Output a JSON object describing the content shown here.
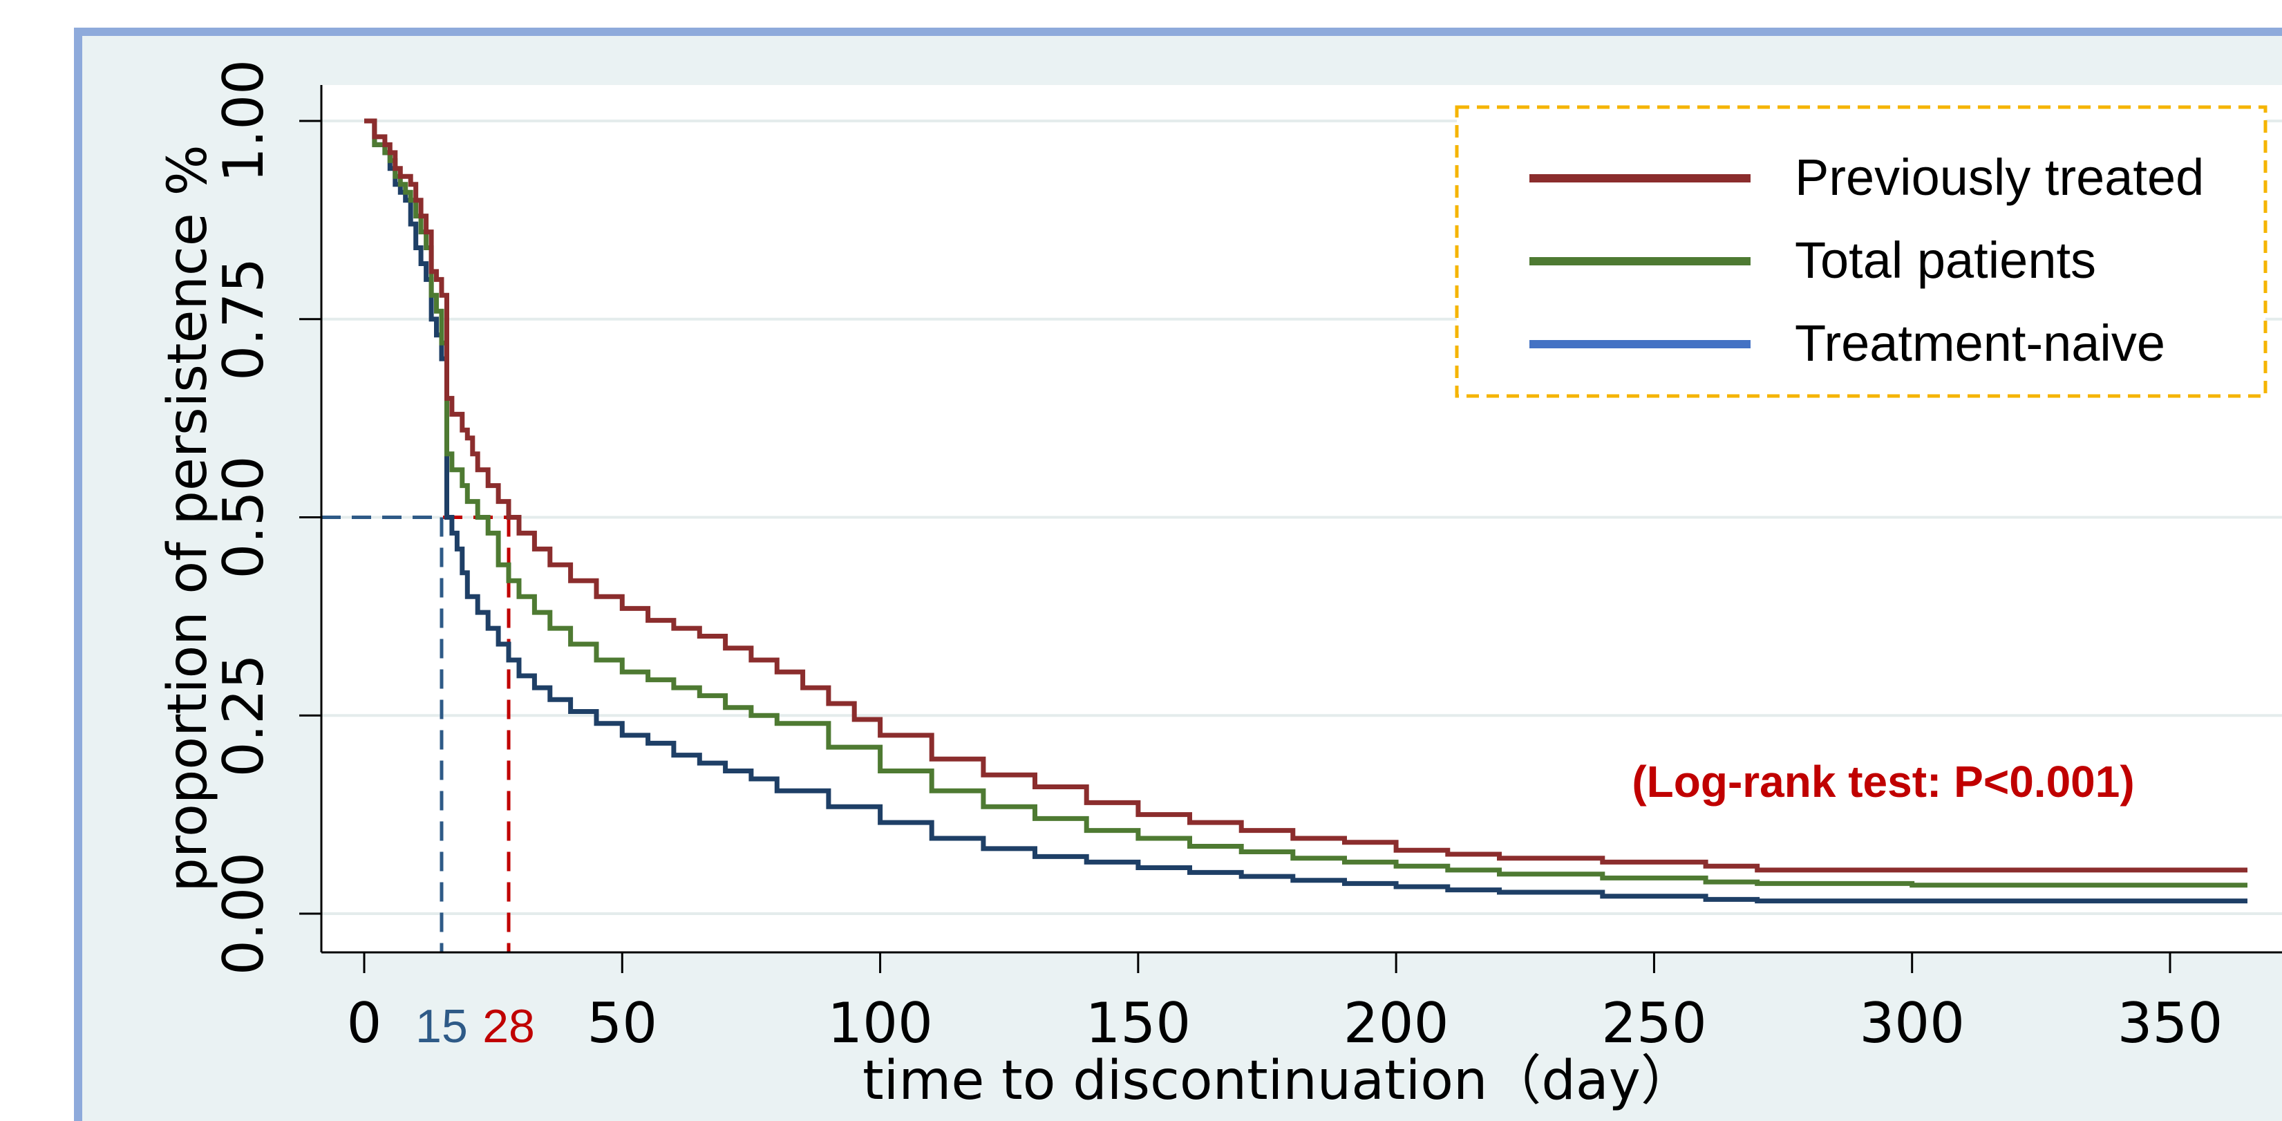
{
  "chart_data": {
    "type": "line",
    "xlabel": "time to discontinuation（day）",
    "ylabel": "proportion of persistence %",
    "xlim": [
      -8,
      372
    ],
    "ylim": [
      -0.05,
      1.05
    ],
    "x_ticks": [
      0,
      50,
      100,
      150,
      200,
      250,
      300,
      350
    ],
    "x_tick_labels": [
      "0",
      "50",
      "100",
      "150",
      "200",
      "250",
      "300",
      "350"
    ],
    "y_ticks": [
      0,
      0.25,
      0.5,
      0.75,
      1.0
    ],
    "y_tick_labels": [
      "0.00",
      "0.25",
      "0.50",
      "0.75",
      "1.00"
    ],
    "grid": "horizontal",
    "legend_position": "top-right",
    "annotation": "(Log-rank test: P<0.001)",
    "median_reference": {
      "y": 0.5,
      "medians": [
        {
          "label": "15",
          "x": 15,
          "color": "#2e5a87"
        },
        {
          "label": "28",
          "x": 28,
          "color": "#c00000"
        }
      ]
    },
    "colors": {
      "background": "#eaf2f3",
      "frame": "#8eaadb",
      "plot_background": "#ffffff",
      "legend_border": "#f5b400",
      "annotation": "#c00000"
    },
    "series": [
      {
        "name": "Previously treated",
        "color": "#8b2d2d",
        "legend_color": "#8b2d2d",
        "points": [
          [
            0,
            1.0
          ],
          [
            2,
            0.98
          ],
          [
            4,
            0.97
          ],
          [
            5,
            0.96
          ],
          [
            6,
            0.94
          ],
          [
            7,
            0.93
          ],
          [
            8,
            0.93
          ],
          [
            9,
            0.92
          ],
          [
            10,
            0.9
          ],
          [
            11,
            0.88
          ],
          [
            12,
            0.86
          ],
          [
            13,
            0.81
          ],
          [
            14,
            0.8
          ],
          [
            15,
            0.78
          ],
          [
            16,
            0.65
          ],
          [
            17,
            0.63
          ],
          [
            19,
            0.61
          ],
          [
            20,
            0.6
          ],
          [
            21,
            0.58
          ],
          [
            22,
            0.56
          ],
          [
            24,
            0.54
          ],
          [
            26,
            0.52
          ],
          [
            28,
            0.5
          ],
          [
            30,
            0.48
          ],
          [
            33,
            0.46
          ],
          [
            36,
            0.44
          ],
          [
            40,
            0.42
          ],
          [
            45,
            0.4
          ],
          [
            50,
            0.385
          ],
          [
            55,
            0.37
          ],
          [
            60,
            0.36
          ],
          [
            65,
            0.35
          ],
          [
            70,
            0.335
          ],
          [
            75,
            0.32
          ],
          [
            80,
            0.305
          ],
          [
            85,
            0.285
          ],
          [
            90,
            0.265
          ],
          [
            95,
            0.245
          ],
          [
            100,
            0.225
          ],
          [
            110,
            0.195
          ],
          [
            120,
            0.175
          ],
          [
            130,
            0.16
          ],
          [
            140,
            0.14
          ],
          [
            150,
            0.125
          ],
          [
            160,
            0.115
          ],
          [
            170,
            0.105
          ],
          [
            180,
            0.095
          ],
          [
            190,
            0.09
          ],
          [
            200,
            0.08
          ],
          [
            210,
            0.075
          ],
          [
            220,
            0.07
          ],
          [
            240,
            0.065
          ],
          [
            260,
            0.06
          ],
          [
            270,
            0.055
          ],
          [
            300,
            0.055
          ],
          [
            365,
            0.055
          ]
        ]
      },
      {
        "name": "Total patients",
        "color": "#4e7a32",
        "legend_color": "#4e7a32",
        "points": [
          [
            0,
            1.0
          ],
          [
            2,
            0.97
          ],
          [
            4,
            0.96
          ],
          [
            5,
            0.95
          ],
          [
            6,
            0.93
          ],
          [
            7,
            0.92
          ],
          [
            8,
            0.91
          ],
          [
            9,
            0.9
          ],
          [
            10,
            0.88
          ],
          [
            11,
            0.86
          ],
          [
            12,
            0.84
          ],
          [
            13,
            0.78
          ],
          [
            14,
            0.76
          ],
          [
            15,
            0.72
          ],
          [
            16,
            0.58
          ],
          [
            17,
            0.56
          ],
          [
            19,
            0.54
          ],
          [
            20,
            0.52
          ],
          [
            22,
            0.5
          ],
          [
            24,
            0.48
          ],
          [
            26,
            0.44
          ],
          [
            28,
            0.42
          ],
          [
            30,
            0.4
          ],
          [
            33,
            0.38
          ],
          [
            36,
            0.36
          ],
          [
            40,
            0.34
          ],
          [
            45,
            0.32
          ],
          [
            50,
            0.305
          ],
          [
            55,
            0.295
          ],
          [
            60,
            0.285
          ],
          [
            65,
            0.275
          ],
          [
            70,
            0.26
          ],
          [
            75,
            0.25
          ],
          [
            80,
            0.24
          ],
          [
            90,
            0.21
          ],
          [
            100,
            0.18
          ],
          [
            110,
            0.155
          ],
          [
            120,
            0.135
          ],
          [
            130,
            0.12
          ],
          [
            140,
            0.105
          ],
          [
            150,
            0.095
          ],
          [
            160,
            0.085
          ],
          [
            170,
            0.078
          ],
          [
            180,
            0.07
          ],
          [
            190,
            0.065
          ],
          [
            200,
            0.06
          ],
          [
            210,
            0.055
          ],
          [
            220,
            0.05
          ],
          [
            240,
            0.045
          ],
          [
            260,
            0.04
          ],
          [
            270,
            0.038
          ],
          [
            300,
            0.036
          ],
          [
            365,
            0.036
          ]
        ]
      },
      {
        "name": "Treatment-naive",
        "color": "#1e3f66",
        "legend_color": "#4472c4",
        "points": [
          [
            0,
            1.0
          ],
          [
            2,
            0.97
          ],
          [
            4,
            0.96
          ],
          [
            5,
            0.94
          ],
          [
            6,
            0.92
          ],
          [
            7,
            0.91
          ],
          [
            8,
            0.9
          ],
          [
            9,
            0.87
          ],
          [
            10,
            0.84
          ],
          [
            11,
            0.82
          ],
          [
            12,
            0.8
          ],
          [
            13,
            0.75
          ],
          [
            14,
            0.73
          ],
          [
            15,
            0.7
          ],
          [
            16,
            0.5
          ],
          [
            17,
            0.48
          ],
          [
            18,
            0.46
          ],
          [
            19,
            0.43
          ],
          [
            20,
            0.4
          ],
          [
            22,
            0.38
          ],
          [
            24,
            0.36
          ],
          [
            26,
            0.34
          ],
          [
            28,
            0.32
          ],
          [
            30,
            0.3
          ],
          [
            33,
            0.285
          ],
          [
            36,
            0.27
          ],
          [
            40,
            0.255
          ],
          [
            45,
            0.24
          ],
          [
            50,
            0.225
          ],
          [
            55,
            0.215
          ],
          [
            60,
            0.2
          ],
          [
            65,
            0.19
          ],
          [
            70,
            0.18
          ],
          [
            75,
            0.17
          ],
          [
            80,
            0.155
          ],
          [
            90,
            0.135
          ],
          [
            100,
            0.115
          ],
          [
            110,
            0.095
          ],
          [
            120,
            0.082
          ],
          [
            130,
            0.072
          ],
          [
            140,
            0.065
          ],
          [
            150,
            0.058
          ],
          [
            160,
            0.052
          ],
          [
            170,
            0.047
          ],
          [
            180,
            0.042
          ],
          [
            190,
            0.038
          ],
          [
            200,
            0.034
          ],
          [
            210,
            0.03
          ],
          [
            220,
            0.027
          ],
          [
            240,
            0.022
          ],
          [
            260,
            0.018
          ],
          [
            270,
            0.016
          ],
          [
            300,
            0.016
          ],
          [
            365,
            0.016
          ]
        ]
      }
    ]
  }
}
